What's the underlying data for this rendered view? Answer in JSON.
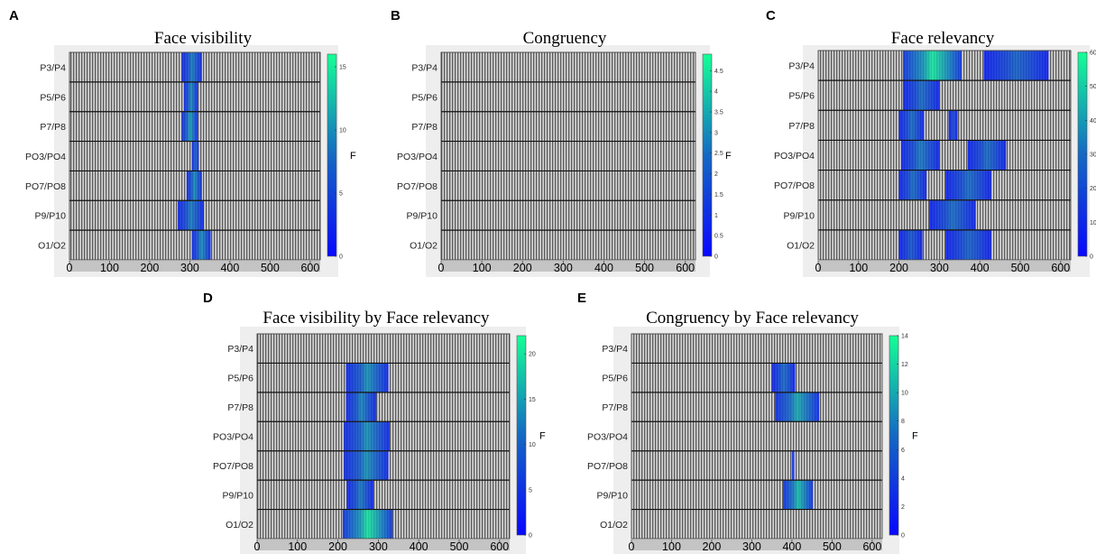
{
  "chart_data": [
    {
      "type": "heatmap",
      "panel": "A",
      "title": "Face visibility",
      "rows": [
        "P3/P4",
        "P5/P6",
        "P7/P8",
        "PO3/PO4",
        "PO7/PO8",
        "P9/P10",
        "O1/O2"
      ],
      "xticks": [
        0,
        100,
        200,
        300,
        400,
        500,
        600
      ],
      "xlim": [
        0,
        625
      ],
      "colorbar": {
        "label": "F",
        "min": 0,
        "max": 16,
        "ticks": [
          0,
          5,
          10,
          15
        ]
      },
      "segments": [
        [
          {
            "start": 280,
            "end": 330,
            "peak": 9
          }
        ],
        [
          {
            "start": 285,
            "end": 320,
            "peak": 10
          }
        ],
        [
          {
            "start": 280,
            "end": 320,
            "peak": 11
          }
        ],
        [
          {
            "start": 305,
            "end": 322,
            "peak": 8
          }
        ],
        [
          {
            "start": 292,
            "end": 330,
            "peak": 10
          }
        ],
        [
          {
            "start": 270,
            "end": 335,
            "peak": 9
          }
        ],
        [
          {
            "start": 305,
            "end": 352,
            "peak": 10
          }
        ]
      ]
    },
    {
      "type": "heatmap",
      "panel": "B",
      "title": "Congruency",
      "rows": [
        "P3/P4",
        "P5/P6",
        "P7/P8",
        "PO3/PO4",
        "PO7/PO8",
        "P9/P10",
        "O1/O2"
      ],
      "xticks": [
        0,
        100,
        200,
        300,
        400,
        500,
        600
      ],
      "xlim": [
        0,
        625
      ],
      "colorbar": {
        "label": "F",
        "min": 0,
        "max": 4.9,
        "ticks": [
          0,
          0.5,
          1,
          1.5,
          2,
          2.5,
          3,
          3.5,
          4,
          4.5
        ]
      },
      "segments": [
        [],
        [],
        [],
        [],
        [],
        [],
        []
      ]
    },
    {
      "type": "heatmap",
      "panel": "C",
      "title": "Face relevancy",
      "rows": [
        "P3/P4",
        "P5/P6",
        "P7/P8",
        "PO3/PO4",
        "PO7/PO8",
        "P9/P10",
        "O1/O2"
      ],
      "xticks": [
        0,
        100,
        200,
        300,
        400,
        500,
        600
      ],
      "xlim": [
        0,
        625
      ],
      "colorbar": {
        "label": "F",
        "min": 0,
        "max": 60,
        "ticks": [
          0,
          10,
          20,
          30,
          40,
          50,
          60
        ]
      },
      "segments": [
        [
          {
            "start": 210,
            "end": 355,
            "peak": 55
          },
          {
            "start": 410,
            "end": 570,
            "peak": 28
          }
        ],
        [
          {
            "start": 210,
            "end": 300,
            "peak": 30
          }
        ],
        [
          {
            "start": 200,
            "end": 262,
            "peak": 30
          },
          {
            "start": 323,
            "end": 345,
            "peak": 22
          }
        ],
        [
          {
            "start": 205,
            "end": 300,
            "peak": 33
          },
          {
            "start": 370,
            "end": 465,
            "peak": 30
          }
        ],
        [
          {
            "start": 200,
            "end": 268,
            "peak": 30
          },
          {
            "start": 315,
            "end": 428,
            "peak": 30
          }
        ],
        [
          {
            "start": 275,
            "end": 390,
            "peak": 30
          }
        ],
        [
          {
            "start": 200,
            "end": 258,
            "peak": 25
          },
          {
            "start": 315,
            "end": 428,
            "peak": 28
          }
        ]
      ]
    },
    {
      "type": "heatmap",
      "panel": "D",
      "title": "Face visibility by Face relevancy",
      "rows": [
        "P3/P4",
        "P5/P6",
        "P7/P8",
        "PO3/PO4",
        "PO7/PO8",
        "P9/P10",
        "O1/O2"
      ],
      "xticks": [
        0,
        100,
        200,
        300,
        400,
        500,
        600
      ],
      "xlim": [
        0,
        625
      ],
      "colorbar": {
        "label": "F",
        "min": 0,
        "max": 22,
        "ticks": [
          0,
          5,
          10,
          15,
          20
        ]
      },
      "segments": [
        [],
        [
          {
            "start": 220,
            "end": 325,
            "peak": 14
          }
        ],
        [
          {
            "start": 220,
            "end": 295,
            "peak": 13
          }
        ],
        [
          {
            "start": 215,
            "end": 328,
            "peak": 14
          }
        ],
        [
          {
            "start": 215,
            "end": 325,
            "peak": 14
          }
        ],
        [
          {
            "start": 222,
            "end": 288,
            "peak": 12
          }
        ],
        [
          {
            "start": 212,
            "end": 335,
            "peak": 20
          }
        ]
      ]
    },
    {
      "type": "heatmap",
      "panel": "E",
      "title": "Congruency by Face relevancy",
      "rows": [
        "P3/P4",
        "P5/P6",
        "P7/P8",
        "PO3/PO4",
        "PO7/PO8",
        "P9/P10",
        "O1/O2"
      ],
      "xticks": [
        0,
        100,
        200,
        300,
        400,
        500,
        600
      ],
      "xlim": [
        0,
        625
      ],
      "colorbar": {
        "label": "F",
        "min": 0,
        "max": 14,
        "ticks": [
          0,
          2,
          4,
          6,
          8,
          10,
          12,
          14
        ]
      },
      "segments": [
        [],
        [
          {
            "start": 350,
            "end": 408,
            "peak": 7
          }
        ],
        [
          {
            "start": 358,
            "end": 468,
            "peak": 10
          }
        ],
        [],
        [
          {
            "start": 400,
            "end": 406,
            "peak": 6
          }
        ],
        [
          {
            "start": 378,
            "end": 452,
            "peak": 11
          }
        ],
        []
      ]
    }
  ]
}
